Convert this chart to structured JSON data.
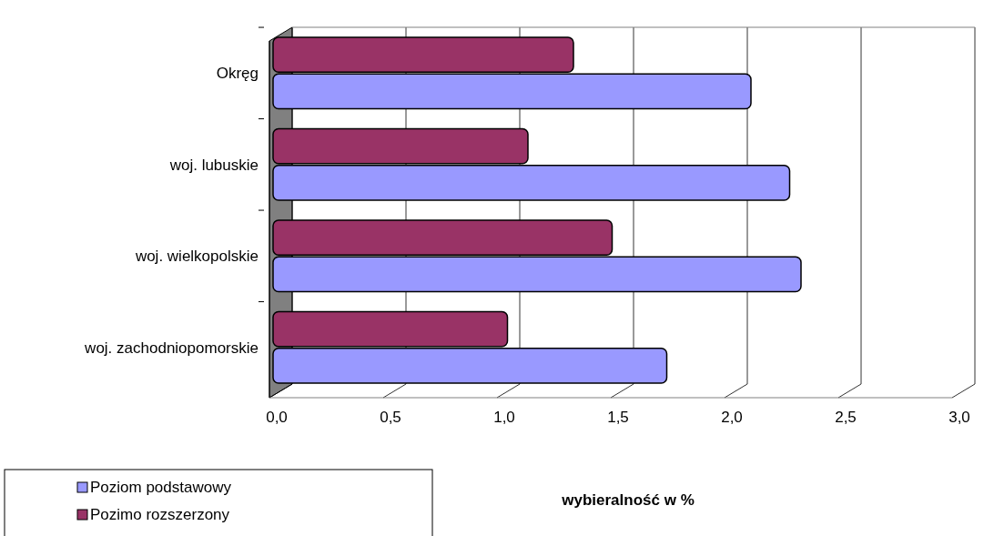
{
  "chart_data": {
    "type": "bar",
    "orientation": "horizontal",
    "xlabel": "wybieralność w %",
    "categories": [
      "Okręg",
      "woj. lubuskie",
      "woj. wielkopolskie",
      "woj. zachodniopomorskie"
    ],
    "series": [
      {
        "name": "Poziom podstawowy",
        "color": "#9999ff",
        "values": [
          2.1,
          2.27,
          2.32,
          1.73
        ]
      },
      {
        "name": "Pozimo rozszerzony",
        "color": "#993366",
        "values": [
          1.32,
          1.12,
          1.49,
          1.03
        ]
      }
    ],
    "xlim": [
      0,
      3
    ],
    "xticks": [
      {
        "value": 0,
        "label": "0,0"
      },
      {
        "value": 0.5,
        "label": "0,5"
      },
      {
        "value": 1,
        "label": "1,0"
      },
      {
        "value": 1.5,
        "label": "1,5"
      },
      {
        "value": 2,
        "label": "2,0"
      },
      {
        "value": 2.5,
        "label": "2,5"
      },
      {
        "value": 3,
        "label": "3,0"
      }
    ],
    "grid": "x",
    "legend": "bottom left"
  }
}
